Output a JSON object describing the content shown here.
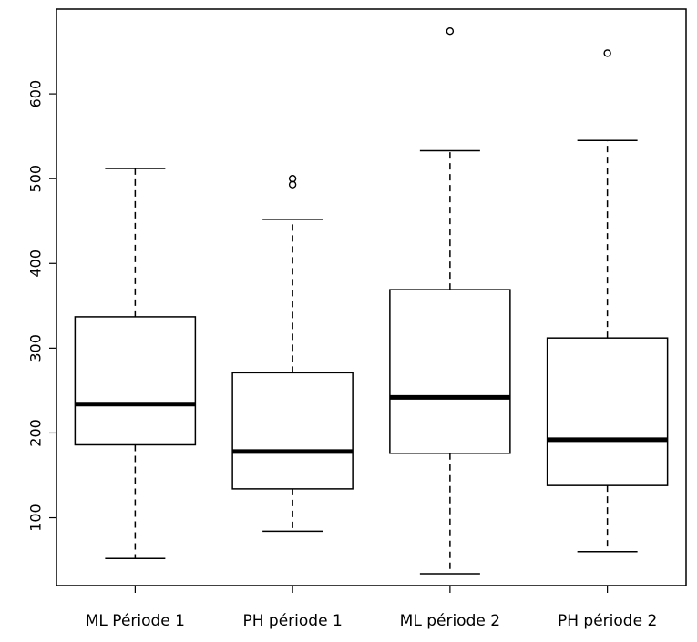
{
  "chart_data": {
    "type": "boxplot",
    "title": "",
    "xlabel": "",
    "ylabel": "",
    "ylim": [
      20,
      700
    ],
    "y_ticks": [
      "100",
      "200",
      "300",
      "400",
      "500",
      "600"
    ],
    "categories": [
      "ML Période 1",
      "PH période 1",
      "ML période 2",
      "PH période 2"
    ],
    "boxes": [
      {
        "whisker_low": 52,
        "q1": 186,
        "median": 234,
        "q3": 337,
        "whisker_high": 512,
        "outliers": []
      },
      {
        "whisker_low": 84,
        "q1": 134,
        "median": 178,
        "q3": 271,
        "whisker_high": 452,
        "outliers": [
          493,
          500
        ]
      },
      {
        "whisker_low": 34,
        "q1": 176,
        "median": 242,
        "q3": 369,
        "whisker_high": 533,
        "outliers": [
          674
        ]
      },
      {
        "whisker_low": 60,
        "q1": 138,
        "median": 192,
        "q3": 312,
        "whisker_high": 545,
        "outliers": [
          648
        ]
      }
    ],
    "grid": false,
    "legend": "none"
  }
}
